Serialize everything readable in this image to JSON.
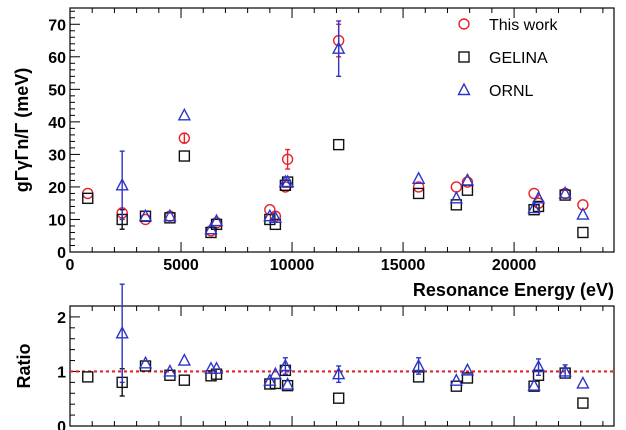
{
  "chart_data": [
    {
      "type": "scatter",
      "ylabel": "gΓγΓn/Γ (meV)",
      "xlabel": "Resonance Energy  (eV)",
      "xlim": [
        0,
        24500
      ],
      "ylim": [
        0,
        75
      ],
      "x_ticks": [
        "0",
        "5000",
        "10000",
        "15000",
        "20000"
      ],
      "y_ticks": [
        "0",
        "10",
        "20",
        "30",
        "40",
        "50",
        "60",
        "70"
      ],
      "legend_position": "top-right",
      "series": [
        {
          "name": "This work",
          "marker": "circle",
          "color": "#e8212a",
          "points": [
            {
              "x": 800,
              "y": 18
            },
            {
              "x": 2350,
              "y": 12,
              "err": 1.5
            },
            {
              "x": 3400,
              "y": 10
            },
            {
              "x": 4500,
              "y": 11
            },
            {
              "x": 5150,
              "y": 35,
              "err": 1.5
            },
            {
              "x": 6350,
              "y": 6.5
            },
            {
              "x": 6600,
              "y": 9
            },
            {
              "x": 9000,
              "y": 13
            },
            {
              "x": 9250,
              "y": 11
            },
            {
              "x": 9700,
              "y": 20
            },
            {
              "x": 9800,
              "y": 28.5,
              "err": 3
            },
            {
              "x": 12100,
              "y": 65,
              "err": 5
            },
            {
              "x": 15700,
              "y": 20
            },
            {
              "x": 17400,
              "y": 20
            },
            {
              "x": 17900,
              "y": 21.5
            },
            {
              "x": 20900,
              "y": 18
            },
            {
              "x": 21100,
              "y": 15
            },
            {
              "x": 22300,
              "y": 18
            },
            {
              "x": 23100,
              "y": 14.5
            }
          ]
        },
        {
          "name": "GELINA",
          "marker": "square",
          "color": "#111111",
          "points": [
            {
              "x": 800,
              "y": 16.5
            },
            {
              "x": 2350,
              "y": 10,
              "err": 3
            },
            {
              "x": 3400,
              "y": 11
            },
            {
              "x": 4500,
              "y": 10.5
            },
            {
              "x": 5150,
              "y": 29.5
            },
            {
              "x": 6350,
              "y": 6
            },
            {
              "x": 6600,
              "y": 8.5
            },
            {
              "x": 9000,
              "y": 10
            },
            {
              "x": 9250,
              "y": 8.5
            },
            {
              "x": 9700,
              "y": 20.5
            },
            {
              "x": 9800,
              "y": 21.5
            },
            {
              "x": 12100,
              "y": 33
            },
            {
              "x": 15700,
              "y": 18
            },
            {
              "x": 17400,
              "y": 14.5
            },
            {
              "x": 17900,
              "y": 19
            },
            {
              "x": 20900,
              "y": 13
            },
            {
              "x": 21100,
              "y": 14
            },
            {
              "x": 22300,
              "y": 17.5
            },
            {
              "x": 23100,
              "y": 6
            }
          ]
        },
        {
          "name": "ORNL",
          "marker": "triangle",
          "color": "#2c35c8",
          "points": [
            {
              "x": 2350,
              "y": 20.5,
              "err": 10.5
            },
            {
              "x": 3400,
              "y": 11
            },
            {
              "x": 4500,
              "y": 11
            },
            {
              "x": 5150,
              "y": 42
            },
            {
              "x": 6350,
              "y": 7
            },
            {
              "x": 6600,
              "y": 9.5
            },
            {
              "x": 9000,
              "y": 11
            },
            {
              "x": 9250,
              "y": 10.5
            },
            {
              "x": 9700,
              "y": 21.5
            },
            {
              "x": 9800,
              "y": 21.5
            },
            {
              "x": 12100,
              "y": 62.5,
              "err": 8.5
            },
            {
              "x": 15700,
              "y": 22.5
            },
            {
              "x": 17400,
              "y": 16.5
            },
            {
              "x": 17900,
              "y": 22
            },
            {
              "x": 20900,
              "y": 13.5
            },
            {
              "x": 21100,
              "y": 16.5
            },
            {
              "x": 22300,
              "y": 18
            },
            {
              "x": 23100,
              "y": 11.5
            }
          ]
        }
      ]
    },
    {
      "type": "scatter",
      "ylabel": "Ratio",
      "xlim": [
        0,
        24500
      ],
      "ylim": [
        0,
        2.2
      ],
      "y_ticks": [
        "0",
        "1",
        "2"
      ],
      "reference_line": {
        "y": 1,
        "color": "#e8212a",
        "style": "dotted"
      },
      "series": [
        {
          "name": "GELINA",
          "marker": "square",
          "color": "#111111",
          "points": [
            {
              "x": 800,
              "y": 0.9
            },
            {
              "x": 2350,
              "y": 0.8,
              "err": 0.25
            },
            {
              "x": 3400,
              "y": 1.1
            },
            {
              "x": 4500,
              "y": 0.93
            },
            {
              "x": 5150,
              "y": 0.84
            },
            {
              "x": 6350,
              "y": 0.92
            },
            {
              "x": 6600,
              "y": 0.95
            },
            {
              "x": 9000,
              "y": 0.77
            },
            {
              "x": 9250,
              "y": 0.78
            },
            {
              "x": 9700,
              "y": 1.02
            },
            {
              "x": 9800,
              "y": 0.74
            },
            {
              "x": 12100,
              "y": 0.51
            },
            {
              "x": 15700,
              "y": 0.9
            },
            {
              "x": 17400,
              "y": 0.73
            },
            {
              "x": 17900,
              "y": 0.88
            },
            {
              "x": 20900,
              "y": 0.73
            },
            {
              "x": 21100,
              "y": 0.93
            },
            {
              "x": 22300,
              "y": 0.97
            },
            {
              "x": 23100,
              "y": 0.42
            }
          ]
        },
        {
          "name": "ORNL",
          "marker": "triangle",
          "color": "#2c35c8",
          "points": [
            {
              "x": 2350,
              "y": 1.7,
              "err": 0.9
            },
            {
              "x": 3400,
              "y": 1.15
            },
            {
              "x": 4500,
              "y": 1.0
            },
            {
              "x": 5150,
              "y": 1.2
            },
            {
              "x": 6350,
              "y": 1.05
            },
            {
              "x": 6600,
              "y": 1.05
            },
            {
              "x": 9000,
              "y": 0.83
            },
            {
              "x": 9250,
              "y": 0.95
            },
            {
              "x": 9700,
              "y": 1.1,
              "err": 0.15
            },
            {
              "x": 9800,
              "y": 0.76
            },
            {
              "x": 12100,
              "y": 0.95,
              "err": 0.15
            },
            {
              "x": 15700,
              "y": 1.1,
              "err": 0.15
            },
            {
              "x": 17400,
              "y": 0.83
            },
            {
              "x": 17900,
              "y": 1.02
            },
            {
              "x": 20900,
              "y": 0.74
            },
            {
              "x": 21100,
              "y": 1.08,
              "err": 0.15
            },
            {
              "x": 22300,
              "y": 1.0,
              "err": 0.12
            },
            {
              "x": 23100,
              "y": 0.78
            }
          ]
        }
      ]
    }
  ]
}
